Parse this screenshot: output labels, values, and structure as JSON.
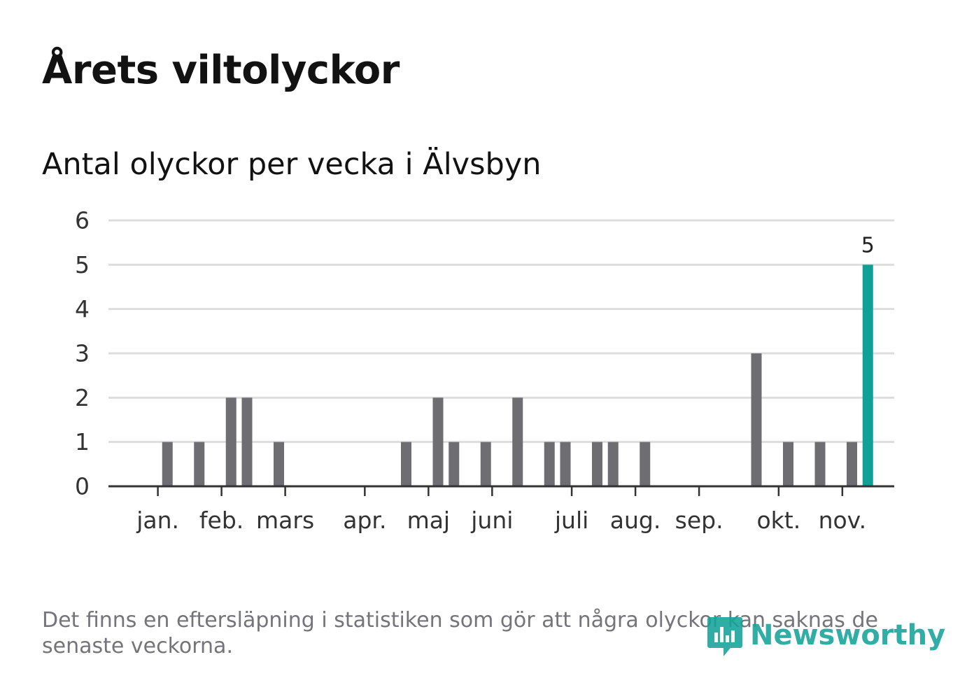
{
  "header": {
    "title": "Årets viltolyckor",
    "subtitle": "Antal olyckor per vecka i Älvsbyn"
  },
  "footer": {
    "note": "Det finns en eftersläpning i statistiken som gör att några olyckor kan saknas de senaste veckorna.",
    "brand": "Newsworthy"
  },
  "colors": {
    "bar": "#6e6d72",
    "highlight": "#0fa196",
    "grid": "#dddddd",
    "axis": "#333333",
    "brand": "#14a39a"
  },
  "chart_data": {
    "type": "bar",
    "title": "Årets viltolyckor",
    "subtitle": "Antal olyckor per vecka i Älvsbyn",
    "xlabel": "",
    "ylabel": "",
    "ylim": [
      0,
      6
    ],
    "yticks": [
      0,
      1,
      2,
      3,
      4,
      5,
      6
    ],
    "grid": true,
    "x_unit": "week",
    "weeks": [
      2,
      4,
      6,
      7,
      9,
      17,
      19,
      20,
      22,
      24,
      26,
      27,
      29,
      30,
      32,
      39,
      41,
      43,
      45,
      46
    ],
    "values": [
      1,
      1,
      2,
      2,
      1,
      1,
      2,
      1,
      1,
      2,
      1,
      1,
      1,
      1,
      1,
      3,
      1,
      1,
      1,
      5
    ],
    "highlight_week": 46,
    "data_labels": [
      {
        "week": 46,
        "text": "5"
      }
    ],
    "month_ticks": [
      {
        "label": "jan.",
        "week": 1.4
      },
      {
        "label": "feb.",
        "week": 5.4
      },
      {
        "label": "mars",
        "week": 9.4
      },
      {
        "label": "apr.",
        "week": 14.4
      },
      {
        "label": "maj",
        "week": 18.4
      },
      {
        "label": "juni",
        "week": 22.4
      },
      {
        "label": "juli",
        "week": 27.4
      },
      {
        "label": "aug.",
        "week": 31.4
      },
      {
        "label": "sep.",
        "week": 35.4
      },
      {
        "label": "okt.",
        "week": 40.4
      },
      {
        "label": "nov.",
        "week": 44.4
      }
    ]
  }
}
